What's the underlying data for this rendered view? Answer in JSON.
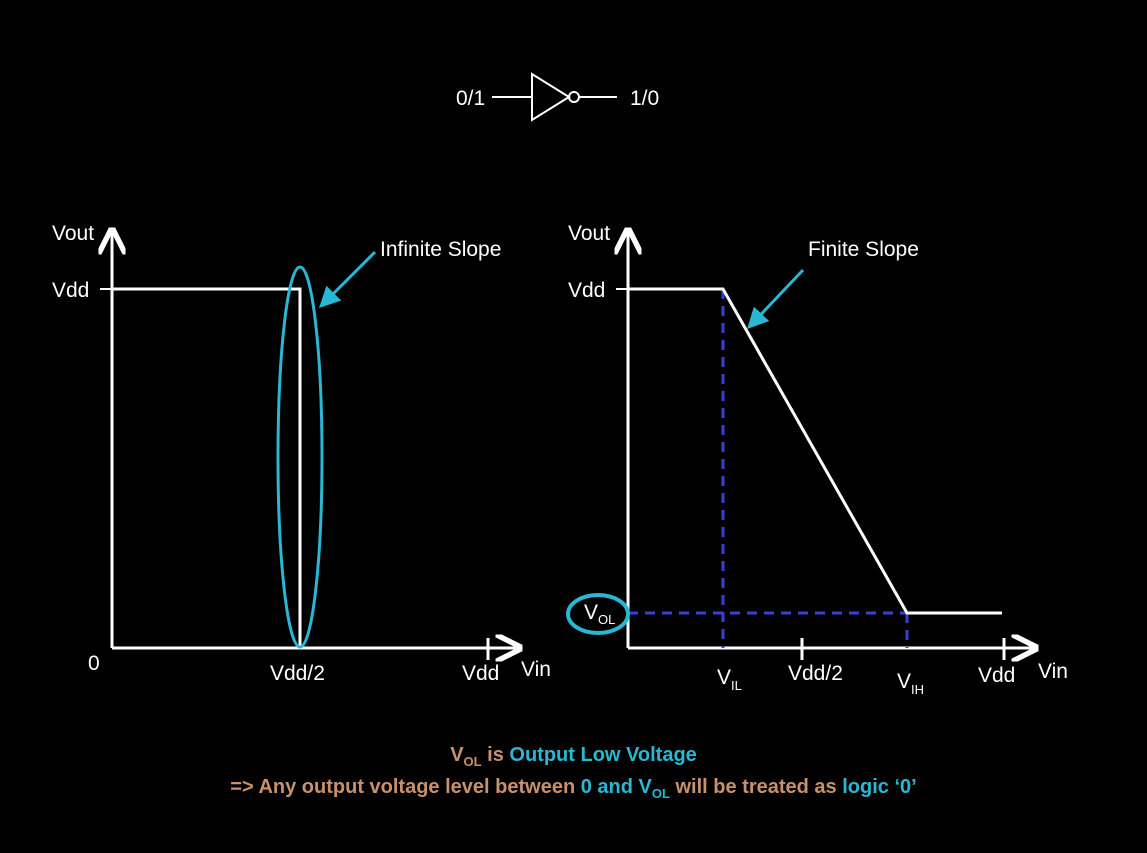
{
  "colors": {
    "background": "#000000",
    "line": "#ffffff",
    "highlight": "#29b7d3",
    "dashed": "#3a3fd4",
    "caption": "#c8916a"
  },
  "gate": {
    "input_label": "0/1",
    "output_label": "1/0",
    "icon": "not-gate-icon"
  },
  "left_chart": {
    "y_axis_label": "Vout",
    "x_axis_label": "Vin",
    "vdd_tick": "Vdd",
    "origin_label": "0",
    "mid_tick": "Vdd/2",
    "end_tick": "Vdd",
    "annotation": "Infinite Slope"
  },
  "right_chart": {
    "y_axis_label": "Vout",
    "x_axis_label": "Vin",
    "vdd_tick": "Vdd",
    "vol_label_main": "V",
    "vol_label_sub": "OL",
    "vil_main": "V",
    "vil_sub": "IL",
    "mid_tick": "Vdd/2",
    "vih_main": "V",
    "vih_sub": "IH",
    "end_tick": "Vdd",
    "annotation": "Finite Slope"
  },
  "caption": {
    "line1": {
      "v": "V",
      "sub": "OL",
      "is": " is ",
      "definition": "Output Low Voltage"
    },
    "line2": {
      "lead": "=> Any output voltage level between ",
      "zero": "0",
      "and": " and ",
      "v": "V",
      "sub": "OL",
      "tail": " will be treated as ",
      "logic": "logic ‘0’"
    }
  }
}
